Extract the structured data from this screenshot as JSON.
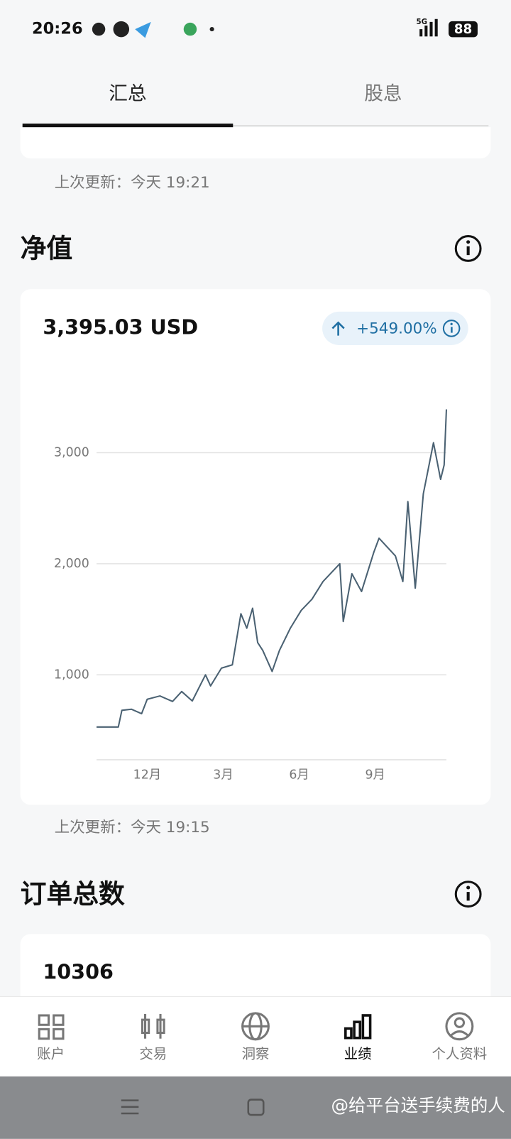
{
  "status_bar": {
    "time": "20:26",
    "network": "5G",
    "battery": "88"
  },
  "tabs": [
    "汇总",
    "股息"
  ],
  "net_value": {
    "updated": "上次更新：今天 19:21",
    "title": "净值",
    "amount": "3,395.03 USD",
    "change": "+549.00%"
  },
  "chart_data": {
    "type": "line",
    "color": "#4a6172",
    "x": [
      0,
      0.86,
      1.0,
      1.38,
      1.78,
      2.0,
      2.5,
      3.0,
      3.36,
      3.78,
      4.3,
      4.5,
      4.93,
      5.36,
      5.7,
      5.93,
      6.16,
      6.36,
      6.56,
      6.93,
      7.22,
      7.65,
      8.08,
      8.5,
      8.94,
      9.6,
      9.74,
      10.08,
      10.46,
      10.94,
      11.15,
      11.8,
      12.09,
      12.29,
      12.58,
      12.9,
      13.1,
      13.3,
      13.58,
      13.72,
      13.81
    ],
    "values": [
      530,
      530,
      680,
      690,
      650,
      780,
      810,
      760,
      850,
      765,
      1000,
      900,
      1060,
      1090,
      1550,
      1420,
      1600,
      1290,
      1220,
      1030,
      1220,
      1420,
      1580,
      1680,
      1840,
      2000,
      1480,
      1910,
      1750,
      2100,
      2230,
      2070,
      1840,
      2560,
      1780,
      2630,
      2860,
      3090,
      2760,
      2890,
      3390
    ],
    "xlim": [
      0,
      13.81
    ],
    "xticks": [
      {
        "value": 2,
        "label": "12月"
      },
      {
        "value": 5,
        "label": "3月"
      },
      {
        "value": 8,
        "label": "6月"
      },
      {
        "value": 11,
        "label": "9月"
      }
    ],
    "ylim": [
      235,
      3400
    ],
    "yticks": [
      {
        "value": 1000,
        "label": "1,000"
      },
      {
        "value": 2000,
        "label": "2,000"
      },
      {
        "value": 3000,
        "label": "3,000"
      }
    ],
    "grid": true
  },
  "orders": {
    "updated": "上次更新：今天 19:15",
    "title": "订单总数",
    "count": "10306"
  },
  "nav": [
    "账户",
    "交易",
    "洞察",
    "业绩",
    "个人资料"
  ],
  "watermark": "@给平台送手续费的人"
}
